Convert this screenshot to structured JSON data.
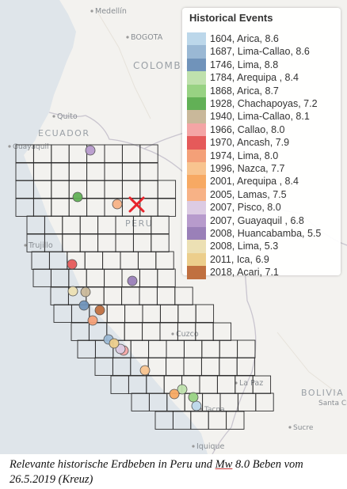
{
  "map": {
    "places": [
      {
        "name": "Medellín",
        "type": "city"
      },
      {
        "name": "BOGOTA",
        "type": "city"
      },
      {
        "name": "COLOMBIA",
        "type": "country"
      },
      {
        "name": "Quito",
        "type": "city"
      },
      {
        "name": "ECUADOR",
        "type": "country"
      },
      {
        "name": "Guayaquil",
        "type": "city"
      },
      {
        "name": "PERU",
        "type": "country"
      },
      {
        "name": "Trujillo",
        "type": "city"
      },
      {
        "name": "Cuzco",
        "type": "city"
      },
      {
        "name": "La Paz",
        "type": "city"
      },
      {
        "name": "BOLIVIA",
        "type": "country"
      },
      {
        "name": "Santa Cruz de la Sierra",
        "type": "city"
      },
      {
        "name": "Sucre",
        "type": "city"
      },
      {
        "name": "Iquique",
        "type": "city"
      },
      {
        "name": "Tacna",
        "type": "city"
      }
    ],
    "epicenter_marker": {
      "symbol": "x",
      "color": "#e8242b"
    },
    "grid_color": "#2b2b2b"
  },
  "legend": {
    "title": "Historical Events",
    "items": [
      {
        "year": 1604,
        "place": "Arica",
        "magnitude": 8.6,
        "label": "1604, Arica, 8.6",
        "color": "#bcd7ea"
      },
      {
        "year": 1687,
        "place": "Lima-Callao",
        "magnitude": 8.6,
        "label": "1687, Lima-Callao, 8.6",
        "color": "#9ab8d4"
      },
      {
        "year": 1746,
        "place": "Lima",
        "magnitude": 8.8,
        "label": "1746, Lima, 8.8",
        "color": "#7093ba"
      },
      {
        "year": 1784,
        "place": "Arequipa",
        "magnitude": 8.4,
        "label": "1784, Arequipa , 8.4",
        "color": "#bfe1ad"
      },
      {
        "year": 1868,
        "place": "Arica",
        "magnitude": 8.7,
        "label": "1868, Arica, 8.7",
        "color": "#98d283"
      },
      {
        "year": 1928,
        "place": "Chachapoyas",
        "magnitude": 7.2,
        "label": "1928, Chachapoyas, 7.2",
        "color": "#62b056"
      },
      {
        "year": 1940,
        "place": "Lima-Callao",
        "magnitude": 8.1,
        "label": "1940, Lima-Callao, 8.1",
        "color": "#c9b89a"
      },
      {
        "year": 1966,
        "place": "Callao",
        "magnitude": 8.0,
        "label": "1966, Callao, 8.0",
        "color": "#f4a5a5"
      },
      {
        "year": 1970,
        "place": "Ancash",
        "magnitude": 7.9,
        "label": "1970, Ancash, 7.9",
        "color": "#e55a5a"
      },
      {
        "year": 1974,
        "place": "Lima",
        "magnitude": 8.0,
        "label": "1974, Lima, 8.0",
        "color": "#f4a078"
      },
      {
        "year": 1996,
        "place": "Nazca",
        "magnitude": 7.7,
        "label": "1996, Nazca, 7.7",
        "color": "#f8c48f"
      },
      {
        "year": 2001,
        "place": "Arequipa",
        "magnitude": 8.4,
        "label": "2001, Arequipa , 8.4",
        "color": "#f7a963"
      },
      {
        "year": 2005,
        "place": "Lamas",
        "magnitude": 7.5,
        "label": "2005, Lamas, 7.5",
        "color": "#f7b286"
      },
      {
        "year": 2007,
        "place": "Pisco",
        "magnitude": 8.0,
        "label": "2007, Pisco, 8.0",
        "color": "#dccbe3"
      },
      {
        "year": 2007,
        "place": "Guayaquil",
        "magnitude": 6.8,
        "label": "2007, Guayaquil , 6.8",
        "color": "#b79bcc"
      },
      {
        "year": 2008,
        "place": "Huancabamba",
        "magnitude": 5.5,
        "label": "2008, Huancabamba, 5.5",
        "color": "#9a80b8"
      },
      {
        "year": 2008,
        "place": "Lima",
        "magnitude": 5.3,
        "label": "2008, Lima, 5.3",
        "color": "#ece0b4"
      },
      {
        "year": 2011,
        "place": "Ica",
        "magnitude": 6.9,
        "label": "2011, Ica, 6.9",
        "color": "#ecce8c"
      },
      {
        "year": 2018,
        "place": "Acari",
        "magnitude": 7.1,
        "label": "2018, Acari, 7.1",
        "color": "#c07040"
      }
    ]
  },
  "caption": {
    "part1": "Relevante historische Erdbeben in Peru und ",
    "mw": "Mw",
    "part2": " 8.0 Beben vom 26.5.2019 (Kreuz)"
  }
}
